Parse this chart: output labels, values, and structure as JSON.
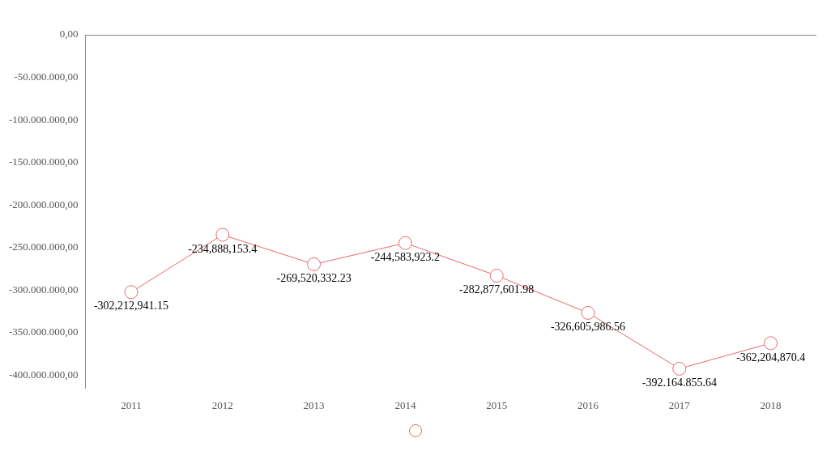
{
  "chart_data": {
    "type": "line",
    "categories": [
      "2011",
      "2012",
      "2013",
      "2014",
      "2015",
      "2016",
      "2017",
      "2018"
    ],
    "series": [
      {
        "color": "#e8696b",
        "values": [
          -302212941.15,
          -234888153.4,
          -269520332.23,
          -244583923.2,
          -282877601.98,
          -326605986.56,
          -392164855.64,
          -362204870.4
        ],
        "value_labels": [
          "-302,212,941.15",
          "-234,888,153.4",
          "-269,520,332.23",
          "-244,583,923.2",
          "-282,877,601.98",
          "-326,605,986.56",
          "-392.164.855.64",
          "-362,204,870.4"
        ]
      }
    ],
    "ylim": [
      -415000000,
      0
    ],
    "yticks": [
      {
        "value": 0,
        "label": "0,00"
      },
      {
        "value": -50000000,
        "label": "-50.000.000,00"
      },
      {
        "value": -100000000,
        "label": "-100.000.000,00"
      },
      {
        "value": -150000000,
        "label": "-150.000.000,00"
      },
      {
        "value": -200000000,
        "label": "-200.000.000,00"
      },
      {
        "value": -250000000,
        "label": "-250.000.000,00"
      },
      {
        "value": -300000000,
        "label": "-300.000.000,00"
      },
      {
        "value": -350000000,
        "label": "-350.000.000,00"
      },
      {
        "value": -400000000,
        "label": "-400.000.000,00"
      }
    ],
    "marker": "circle",
    "line_style": "solid",
    "grid": false
  }
}
